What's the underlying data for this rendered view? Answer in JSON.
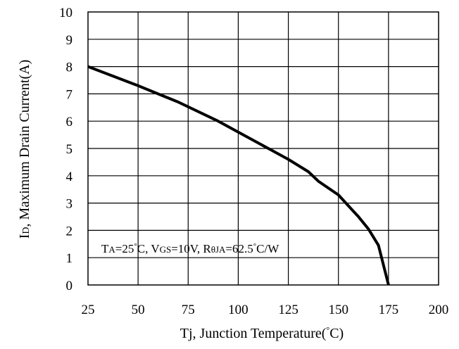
{
  "chart_data": {
    "type": "line",
    "xlabel": {
      "main": "Tj, Junction Temperature(",
      "degree": "°",
      "unit": "C)"
    },
    "ylabel": {
      "main": "I",
      "sub": "D",
      "rest": ", Maximum Drain Current(A)"
    },
    "xlim": [
      25,
      200
    ],
    "ylim": [
      0,
      10
    ],
    "x_ticks": [
      "25",
      "50",
      "75",
      "100",
      "125",
      "150",
      "175",
      "200"
    ],
    "y_ticks": [
      "0",
      "1",
      "2",
      "3",
      "4",
      "5",
      "6",
      "7",
      "8",
      "9",
      "10"
    ],
    "grid": true,
    "series": [
      {
        "x": [
          25,
          50,
          70,
          90,
          110,
          125,
          135,
          140,
          150,
          155,
          160,
          165,
          170,
          175
        ],
        "y": [
          8.0,
          7.3,
          6.7,
          6.0,
          5.2,
          4.6,
          4.15,
          3.8,
          3.3,
          2.9,
          2.5,
          2.05,
          1.45,
          0.0
        ]
      }
    ],
    "annotation": {
      "t": "T",
      "a": "A",
      "tval": "=25",
      "deg1": "°",
      "mid": "C, V",
      "gs": "GS",
      "vval": "=10V, R",
      "theta": "θJA",
      "rval": "=62.5",
      "deg2": "°",
      "unit": "C/W"
    }
  }
}
